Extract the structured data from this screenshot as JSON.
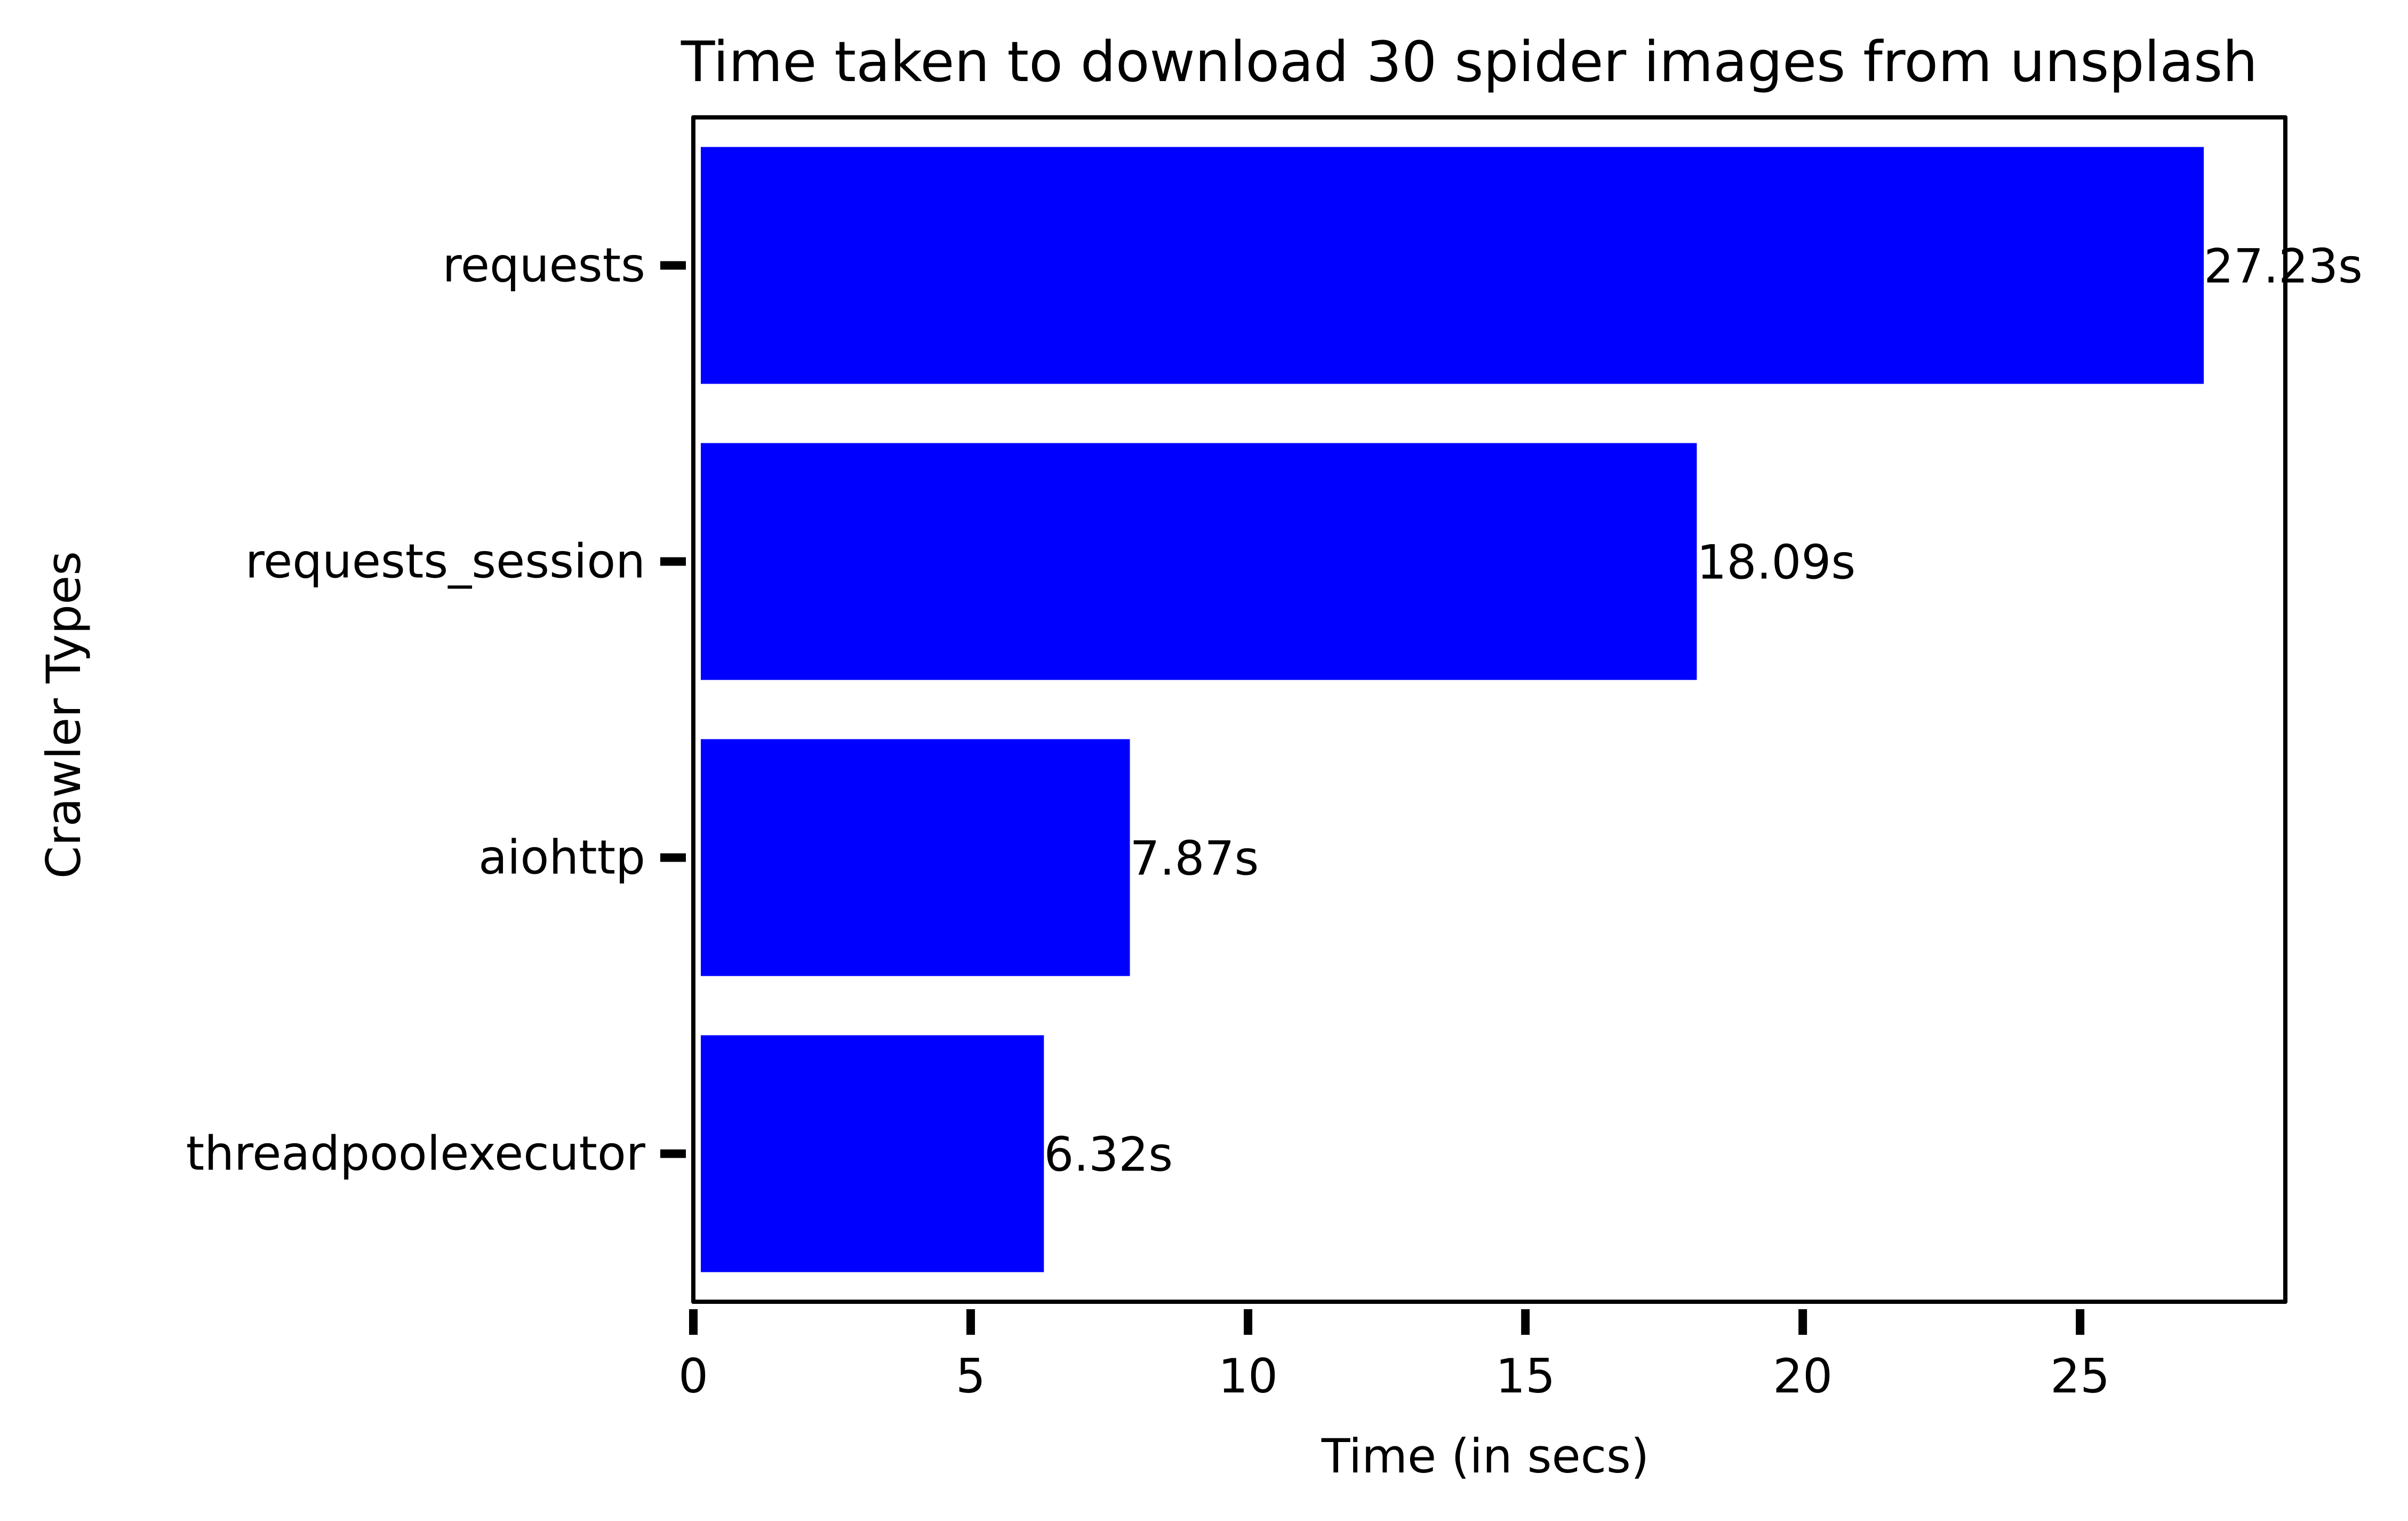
{
  "chart_data": {
    "type": "bar",
    "orientation": "horizontal",
    "title": "Time taken to download 30 spider images from unsplash",
    "xlabel": "Time (in secs)",
    "ylabel": "Crawler Types",
    "categories": [
      "requests",
      "requests_session",
      "aiohttp",
      "threadpoolexecutor"
    ],
    "values": [
      27.23,
      18.09,
      7.87,
      6.32
    ],
    "data_labels": [
      "27.23s",
      "18.09s",
      "7.87s",
      "6.32s"
    ],
    "xticks": [
      "0",
      "5",
      "10",
      "15",
      "20",
      "25"
    ],
    "xtick_values": [
      0,
      5,
      10,
      15,
      20,
      25
    ],
    "xlim": [
      0,
      28.7
    ],
    "bar_color": "#0000ff",
    "grid": false,
    "legend": "none"
  }
}
